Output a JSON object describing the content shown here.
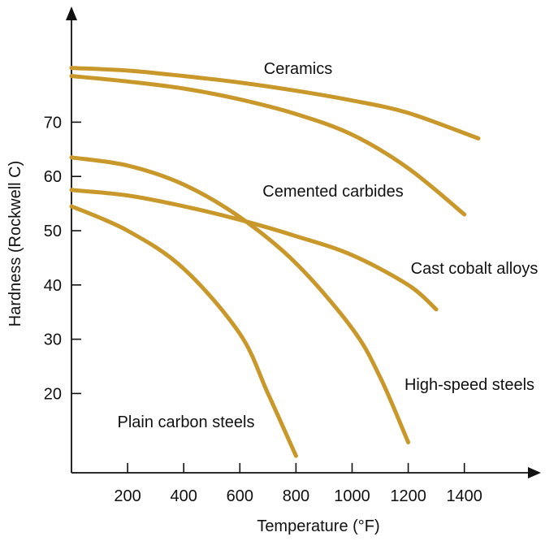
{
  "chart_data": {
    "type": "line",
    "title": "",
    "xlabel": "Temperature (°F)",
    "ylabel": "Hardness (Rockwell C)",
    "xlim": [
      0,
      1650
    ],
    "ylim": [
      7,
      83
    ],
    "xticks": [
      200,
      400,
      600,
      800,
      1000,
      1200,
      1400
    ],
    "yticks": [
      20,
      30,
      40,
      50,
      60,
      70
    ],
    "grid": false,
    "legend": "none",
    "line_color": "#c8982a",
    "series": [
      {
        "name": "Ceramics",
        "points": [
          [
            0,
            80
          ],
          [
            200,
            79.5
          ],
          [
            400,
            78.5
          ],
          [
            600,
            77.3
          ],
          [
            800,
            75.8
          ],
          [
            1000,
            74
          ],
          [
            1200,
            71.7
          ],
          [
            1450,
            67
          ]
        ]
      },
      {
        "name": "Cemented carbides",
        "points": [
          [
            0,
            78.5
          ],
          [
            200,
            77.5
          ],
          [
            400,
            76.2
          ],
          [
            600,
            74.2
          ],
          [
            800,
            71.5
          ],
          [
            1000,
            67.7
          ],
          [
            1200,
            61.5
          ],
          [
            1400,
            53
          ]
        ]
      },
      {
        "name": "Cast cobalt alloys",
        "points": [
          [
            0,
            57.5
          ],
          [
            200,
            56.5
          ],
          [
            400,
            54.5
          ],
          [
            600,
            52
          ],
          [
            800,
            49
          ],
          [
            1000,
            45.5
          ],
          [
            1200,
            40
          ],
          [
            1300,
            35.5
          ]
        ]
      },
      {
        "name": "High-speed steels",
        "points": [
          [
            0,
            63.5
          ],
          [
            200,
            62
          ],
          [
            400,
            58.5
          ],
          [
            600,
            52.5
          ],
          [
            800,
            44
          ],
          [
            1000,
            32
          ],
          [
            1100,
            23
          ],
          [
            1200,
            11
          ]
        ]
      },
      {
        "name": "Plain carbon steels",
        "points": [
          [
            0,
            54.5
          ],
          [
            200,
            50
          ],
          [
            400,
            43
          ],
          [
            600,
            31
          ],
          [
            700,
            20
          ],
          [
            800,
            8.5
          ]
        ]
      }
    ]
  }
}
